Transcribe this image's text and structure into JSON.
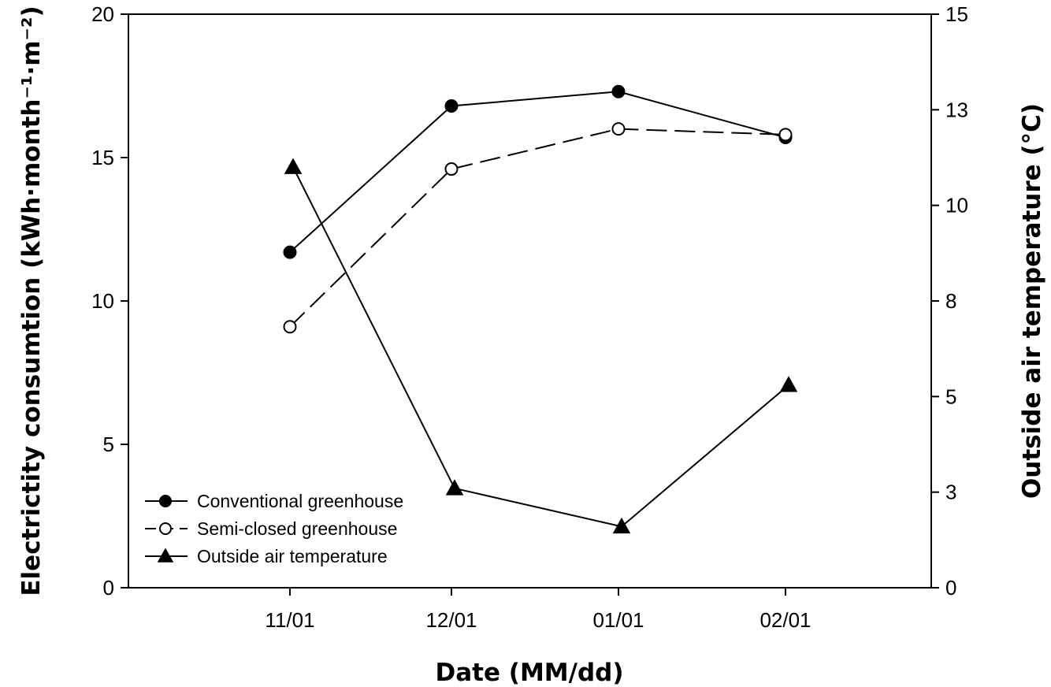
{
  "chart_data": {
    "type": "line",
    "x_ticks": [
      "11/01",
      "12/01",
      "01/01",
      "02/01"
    ],
    "xlabel": "Date (MM/dd)",
    "ylabel_left": "Electrictity consumtion (kWh·month⁻¹·m⁻²)",
    "ylabel_right": "Outside air temperature (°C)",
    "ylim_left": [
      0,
      20
    ],
    "yticks_left": [
      "0",
      "5",
      "10",
      "15",
      "20"
    ],
    "ylim_right": [
      0,
      15
    ],
    "yticks_right": [
      "0",
      "3",
      "5",
      "8",
      "10",
      "13",
      "15"
    ],
    "grid": false,
    "legend_position": "bottom-left",
    "series": [
      {
        "name": "Conventional greenhouse",
        "axis": "left",
        "marker": "filled-circle",
        "line_style": "solid",
        "x": [
          "11/01",
          "12/01",
          "01/01",
          "02/01"
        ],
        "values": [
          11.7,
          16.8,
          17.3,
          15.7
        ]
      },
      {
        "name": "Semi-closed greenhouse",
        "axis": "left",
        "marker": "open-circle",
        "line_style": "dashed",
        "x": [
          "11/01",
          "12/01",
          "01/01",
          "02/01"
        ],
        "values": [
          9.1,
          14.6,
          16.0,
          15.8
        ]
      },
      {
        "name": "Outside air temperature",
        "axis": "right",
        "marker": "filled-triangle",
        "line_style": "solid",
        "x": [
          "11/01",
          "12/01",
          "01/01",
          "02/01"
        ],
        "values": [
          11.0,
          2.6,
          1.6,
          5.3
        ]
      }
    ]
  }
}
